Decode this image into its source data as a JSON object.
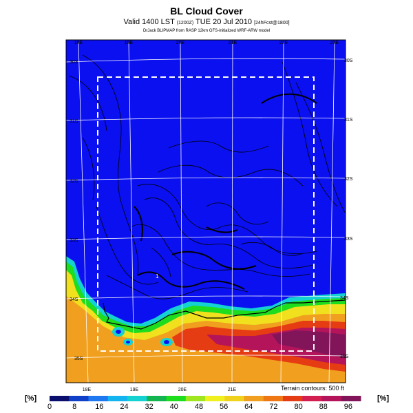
{
  "header": {
    "title": "BL Cloud Cover",
    "valid_line": "Valid 1400 LST",
    "valid_code": "(1200Z)",
    "valid_date": "TUE 20 Jul 2010",
    "forecast_tag": "[24hFcst@1800]",
    "credit": "DrJack BLIPMAP from RASP 12km GFS-initialized WRF-ARW model"
  },
  "map": {
    "top_lon_labels": [
      "18E",
      "19E",
      "20E",
      "21E",
      "22E",
      "23E"
    ],
    "bottom_lon_labels": [
      "18E",
      "19E",
      "20E",
      "21E"
    ],
    "left_lat_labels": [
      "30S",
      "31S",
      "32S",
      "33S",
      "34S",
      "35S"
    ],
    "right_lat_labels": [
      "30S",
      "31S",
      "32S",
      "33S",
      "34S",
      "35S"
    ],
    "terrain_note": "Terrain contours: 500 ft",
    "spot_value": "1"
  },
  "colorbar": {
    "unit_label": "[%]",
    "ticks": [
      "0",
      "8",
      "16",
      "24",
      "32",
      "40",
      "48",
      "56",
      "64",
      "72",
      "80",
      "88",
      "96"
    ],
    "colors": [
      "#0a0f6e",
      "#1040c8",
      "#1e78f0",
      "#14b4f0",
      "#14d2d2",
      "#14b450",
      "#1edc1e",
      "#a0e61e",
      "#f0f01e",
      "#f0d21e",
      "#f0a01e",
      "#f07814",
      "#e63c14",
      "#d21e50",
      "#b4145a",
      "#82145a"
    ]
  },
  "colors": {
    "field_base": "#0a10f0",
    "grid": "#ffffff",
    "contour": "#000000"
  }
}
